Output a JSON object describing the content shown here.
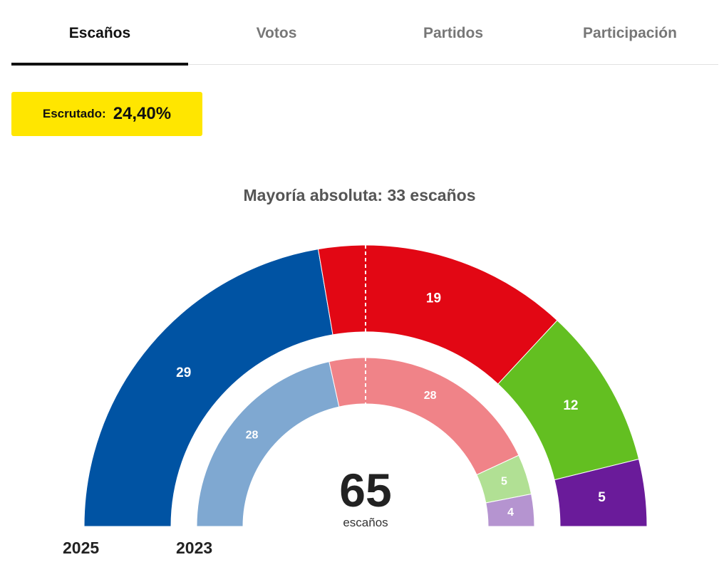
{
  "tabs": [
    {
      "label": "Escaños",
      "active": true
    },
    {
      "label": "Votos",
      "active": false
    },
    {
      "label": "Partidos",
      "active": false
    },
    {
      "label": "Participación",
      "active": false
    }
  ],
  "scrutiny": {
    "label": "Escrutado:",
    "value": "24,40%"
  },
  "majority_text": "Mayoría absoluta: 33 escaños",
  "total": {
    "value": "65",
    "label": "escaños"
  },
  "years": {
    "outer": "2025",
    "inner": "2023"
  },
  "colors": {
    "accent_yellow": "#ffe600",
    "tab_active": "#111111"
  },
  "chart_data": [
    {
      "type": "parliament-donut",
      "year": "2025",
      "total_seats": 65,
      "majority": 33,
      "segments": [
        {
          "seats": 29,
          "color": "#0053a3"
        },
        {
          "seats": 19,
          "color": "#e20714"
        },
        {
          "seats": 12,
          "color": "#63bf21"
        },
        {
          "seats": 5,
          "color": "#6a1b9a"
        }
      ]
    },
    {
      "type": "parliament-donut",
      "year": "2023",
      "total_seats": 65,
      "majority": 33,
      "segments": [
        {
          "seats": 28,
          "color": "#7fa8d1"
        },
        {
          "seats": 28,
          "color": "#f08388"
        },
        {
          "seats": 5,
          "color": "#b1e094"
        },
        {
          "seats": 4,
          "color": "#b594d0"
        }
      ]
    }
  ]
}
